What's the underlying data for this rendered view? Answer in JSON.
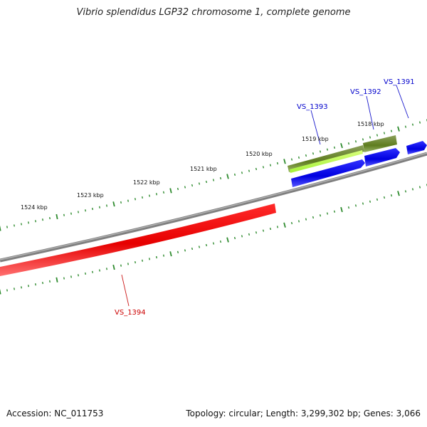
{
  "title": "Vibrio splendidus LGP32 chromosome 1, complete genome",
  "footer": {
    "accession": "Accession: NC_011753",
    "summary": "Topology: circular; Length: 3,299,302 bp; Genes: 3,066"
  },
  "ticks": [
    {
      "label": "1518 kbp"
    },
    {
      "label": "1519 kbp"
    },
    {
      "label": "1520 kbp"
    },
    {
      "label": "1521 kbp"
    },
    {
      "label": "1522 kbp"
    },
    {
      "label": "1523 kbp"
    },
    {
      "label": "1524 kbp"
    }
  ],
  "genes": [
    {
      "name": "VS_1391",
      "strand": "+",
      "color": "#0000ee"
    },
    {
      "name": "VS_1392",
      "strand": "+",
      "color": "#0000ee"
    },
    {
      "name": "VS_1393",
      "strand": "+",
      "color": "#0000ee"
    },
    {
      "name": "VS_1394",
      "strand": "-",
      "color": "#ee0000"
    }
  ],
  "colors": {
    "backbone": "#808080",
    "tick": "#2e8b2e",
    "forward_gene": "#0000ee",
    "reverse_gene": "#ee0000",
    "feature_dark": "#6b8e23",
    "feature_light": "#adff2f"
  }
}
